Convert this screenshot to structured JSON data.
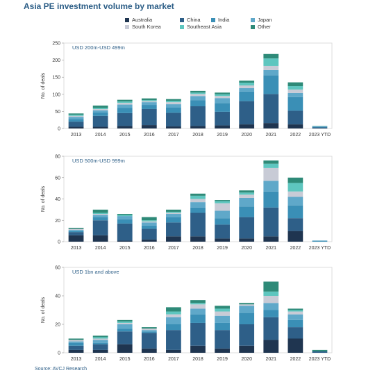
{
  "title": "Asia PE investment volume by market",
  "source": "Source: AVCJ Research",
  "colors": {
    "Australia": "#1f3550",
    "China": "#2e5f88",
    "India": "#3a8fb6",
    "Japan": "#5fa8c9",
    "South Korea": "#c8cbd6",
    "Southeast Asia": "#5ec6bf",
    "Other": "#2e8a78"
  },
  "legend": [
    "Australia",
    "China",
    "India",
    "Japan",
    "South Korea",
    "Southeast Asia",
    "Other"
  ],
  "chart_data": [
    {
      "type": "bar",
      "stacked": true,
      "title": "USD 200m-USD 499m",
      "ylabel": "No. of deals",
      "ylim": [
        0,
        250
      ],
      "yticks": [
        0,
        50,
        100,
        150,
        200,
        250
      ],
      "categories": [
        "2013",
        "2014",
        "2015",
        "2016",
        "2017",
        "2018",
        "2019",
        "2020",
        "2021",
        "2022",
        "2023 YTD"
      ],
      "series": [
        {
          "name": "Australia",
          "values": [
            5,
            5,
            7,
            10,
            6,
            7,
            9,
            12,
            16,
            12,
            1
          ]
        },
        {
          "name": "China",
          "values": [
            15,
            32,
            38,
            47,
            40,
            58,
            40,
            68,
            85,
            40,
            2
          ]
        },
        {
          "name": "India",
          "values": [
            8,
            10,
            15,
            12,
            15,
            18,
            25,
            28,
            55,
            40,
            2
          ]
        },
        {
          "name": "Japan",
          "values": [
            6,
            6,
            10,
            8,
            10,
            12,
            15,
            10,
            15,
            12,
            1
          ]
        },
        {
          "name": "South Korea",
          "values": [
            3,
            4,
            5,
            3,
            6,
            6,
            6,
            8,
            12,
            10,
            1
          ]
        },
        {
          "name": "Southeast Asia",
          "values": [
            3,
            3,
            4,
            3,
            4,
            4,
            5,
            8,
            22,
            10,
            1
          ]
        },
        {
          "name": "Other",
          "values": [
            4,
            7,
            5,
            5,
            5,
            5,
            5,
            6,
            13,
            11,
            0
          ]
        }
      ]
    },
    {
      "type": "bar",
      "stacked": true,
      "title": "USD 500m-USD 999m",
      "ylabel": "No. of deals",
      "ylim": [
        0,
        80
      ],
      "yticks": [
        0,
        20,
        40,
        60,
        80
      ],
      "categories": [
        "2013",
        "2014",
        "2015",
        "2016",
        "2017",
        "2018",
        "2019",
        "2020",
        "2021",
        "2022",
        "2023 YTD"
      ],
      "series": [
        {
          "name": "Australia",
          "values": [
            6,
            6,
            1,
            2,
            5,
            5,
            3,
            3,
            5,
            10,
            0
          ]
        },
        {
          "name": "China",
          "values": [
            3,
            14,
            16,
            10,
            13,
            22,
            13,
            20,
            27,
            12,
            0
          ]
        },
        {
          "name": "India",
          "values": [
            1,
            3,
            4,
            3,
            5,
            5,
            6,
            10,
            15,
            12,
            1
          ]
        },
        {
          "name": "Japan",
          "values": [
            1,
            2,
            3,
            3,
            3,
            5,
            7,
            8,
            10,
            8,
            0
          ]
        },
        {
          "name": "South Korea",
          "values": [
            1,
            1,
            0,
            1,
            1,
            3,
            7,
            3,
            12,
            5,
            0
          ]
        },
        {
          "name": "Southeast Asia",
          "values": [
            0,
            1,
            1,
            1,
            1,
            3,
            2,
            2,
            4,
            8,
            0
          ]
        },
        {
          "name": "Other",
          "values": [
            1,
            3,
            1,
            3,
            2,
            2,
            1,
            2,
            3,
            5,
            0
          ]
        }
      ]
    },
    {
      "type": "bar",
      "stacked": true,
      "title": "USD 1bn and above",
      "ylabel": "No. of deals",
      "ylim": [
        0,
        60
      ],
      "yticks": [
        0,
        20,
        40,
        60
      ],
      "categories": [
        "2013",
        "2014",
        "2015",
        "2016",
        "2017",
        "2018",
        "2019",
        "2020",
        "2021",
        "2022",
        "2023 YTD"
      ],
      "series": [
        {
          "name": "Australia",
          "values": [
            2,
            2,
            6,
            3,
            2,
            5,
            3,
            5,
            9,
            10,
            0
          ]
        },
        {
          "name": "China",
          "values": [
            3,
            4,
            9,
            11,
            14,
            16,
            13,
            15,
            16,
            8,
            1
          ]
        },
        {
          "name": "India",
          "values": [
            2,
            1,
            2,
            1,
            4,
            6,
            5,
            8,
            5,
            5,
            0
          ]
        },
        {
          "name": "Japan",
          "values": [
            1,
            2,
            3,
            1,
            5,
            4,
            5,
            5,
            5,
            4,
            0
          ]
        },
        {
          "name": "South Korea",
          "values": [
            1,
            1,
            1,
            1,
            2,
            3,
            3,
            1,
            5,
            2,
            0
          ]
        },
        {
          "name": "Southeast Asia",
          "values": [
            0,
            1,
            1,
            0,
            2,
            1,
            2,
            0,
            3,
            1,
            0
          ]
        },
        {
          "name": "Other",
          "values": [
            1,
            1,
            1,
            1,
            3,
            2,
            2,
            1,
            7,
            1,
            1
          ]
        }
      ]
    }
  ]
}
